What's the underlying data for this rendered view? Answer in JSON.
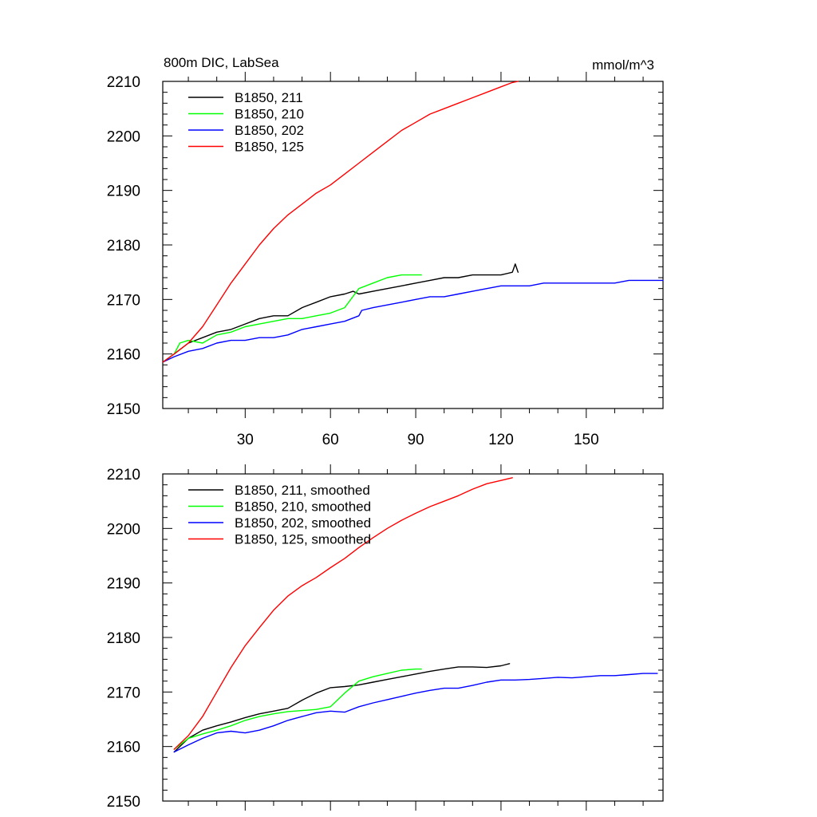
{
  "title_left": "800m DIC, LabSea",
  "title_right": "mmol/m^3",
  "chart_data": [
    {
      "type": "line",
      "panel": "top",
      "title": "800m DIC, LabSea",
      "units": "mmol/m^3",
      "xlim": [
        1,
        177
      ],
      "ylim": [
        2150,
        2210
      ],
      "yticks": [
        2150,
        2160,
        2170,
        2180,
        2190,
        2200,
        2210
      ],
      "xticks": [
        30,
        60,
        90,
        120,
        150
      ],
      "xtick_labels": [
        "30",
        "60",
        "90",
        "120",
        "150"
      ],
      "legend_position": "top-left",
      "series": [
        {
          "name": "B1850, 211",
          "color": "#000000",
          "x": [
            1,
            5,
            10,
            15,
            20,
            25,
            30,
            35,
            40,
            45,
            50,
            55,
            60,
            65,
            68,
            70,
            75,
            80,
            85,
            90,
            95,
            100,
            105,
            110,
            115,
            120,
            124,
            125,
            126
          ],
          "y": [
            2158.5,
            2160,
            2162,
            2163,
            2164,
            2164.5,
            2165.5,
            2166.5,
            2167,
            2167,
            2168.5,
            2169.5,
            2170.5,
            2171,
            2171.5,
            2171,
            2171.5,
            2172,
            2172.5,
            2173,
            2173.5,
            2174,
            2174,
            2174.5,
            2174.5,
            2174.5,
            2175,
            2176.5,
            2175
          ]
        },
        {
          "name": "B1850, 210",
          "color": "#00ff00",
          "x": [
            1,
            5,
            7,
            10,
            15,
            20,
            25,
            30,
            35,
            40,
            45,
            50,
            55,
            60,
            65,
            70,
            75,
            80,
            85,
            90,
            92
          ],
          "y": [
            2158.5,
            2160,
            2162,
            2162.5,
            2162,
            2163.5,
            2164,
            2165,
            2165.5,
            2166,
            2166.5,
            2166.5,
            2167,
            2167.5,
            2168.5,
            2172,
            2173,
            2174,
            2174.5,
            2174.5,
            2174.5
          ]
        },
        {
          "name": "B1850, 202",
          "color": "#0000ff",
          "x": [
            1,
            5,
            10,
            15,
            20,
            25,
            30,
            35,
            40,
            45,
            50,
            55,
            60,
            65,
            70,
            71,
            75,
            80,
            85,
            90,
            95,
            100,
            105,
            110,
            115,
            120,
            125,
            130,
            135,
            140,
            145,
            150,
            155,
            160,
            165,
            170,
            175,
            177
          ],
          "y": [
            2158.5,
            2159.5,
            2160.5,
            2161,
            2162,
            2162.5,
            2162.5,
            2163,
            2163,
            2163.5,
            2164.5,
            2165,
            2165.5,
            2166,
            2167,
            2168,
            2168.5,
            2169,
            2169.5,
            2170,
            2170.5,
            2170.5,
            2171,
            2171.5,
            2172,
            2172.5,
            2172.5,
            2172.5,
            2173,
            2173,
            2173,
            2173,
            2173,
            2173,
            2173.5,
            2173.5,
            2173.5,
            2173.5
          ]
        },
        {
          "name": "B1850, 125",
          "color": "#ff0000",
          "x": [
            1,
            5,
            10,
            15,
            20,
            25,
            30,
            35,
            40,
            45,
            50,
            55,
            60,
            65,
            70,
            75,
            80,
            85,
            90,
            95,
            100,
            105,
            110,
            115,
            120,
            124,
            126
          ],
          "y": [
            2158.5,
            2160,
            2162,
            2165,
            2169,
            2173,
            2176.5,
            2180,
            2183,
            2185.5,
            2187.5,
            2189.5,
            2191,
            2193,
            2195,
            2197,
            2199,
            2201,
            2202.5,
            2204,
            2205,
            2206,
            2207,
            2208,
            2209,
            2209.8,
            2210
          ]
        }
      ]
    },
    {
      "type": "line",
      "panel": "bottom",
      "xlim": [
        1,
        177
      ],
      "ylim": [
        2150,
        2210
      ],
      "yticks": [
        2150,
        2160,
        2170,
        2180,
        2190,
        2200,
        2210
      ],
      "xticks": [
        30,
        60,
        90,
        120,
        150
      ],
      "legend_position": "top-left",
      "series": [
        {
          "name": "B1850, 211, smoothed",
          "color": "#000000",
          "x": [
            5,
            10,
            15,
            20,
            25,
            30,
            35,
            40,
            45,
            50,
            55,
            60,
            65,
            70,
            75,
            80,
            85,
            90,
            95,
            100,
            105,
            110,
            115,
            120,
            123
          ],
          "y": [
            2159,
            2161.5,
            2163,
            2163.8,
            2164.5,
            2165.3,
            2166,
            2166.5,
            2167,
            2168.5,
            2169.8,
            2170.8,
            2171,
            2171.3,
            2171.8,
            2172.3,
            2172.8,
            2173.3,
            2173.8,
            2174.2,
            2174.6,
            2174.6,
            2174.5,
            2174.8,
            2175.2
          ]
        },
        {
          "name": "B1850, 210, smoothed",
          "color": "#00ff00",
          "x": [
            5,
            10,
            15,
            20,
            25,
            30,
            35,
            40,
            45,
            50,
            55,
            60,
            65,
            70,
            75,
            80,
            85,
            90,
            92
          ],
          "y": [
            2159.5,
            2161.5,
            2162.3,
            2163,
            2163.8,
            2164.8,
            2165.5,
            2166,
            2166.4,
            2166.6,
            2166.8,
            2167.3,
            2169.8,
            2172,
            2172.8,
            2173.4,
            2174,
            2174.2,
            2174.2
          ]
        },
        {
          "name": "B1850, 202, smoothed",
          "color": "#0000ff",
          "x": [
            5,
            10,
            15,
            20,
            25,
            30,
            35,
            40,
            45,
            50,
            55,
            60,
            65,
            70,
            75,
            80,
            85,
            90,
            95,
            100,
            105,
            110,
            115,
            120,
            125,
            130,
            135,
            140,
            145,
            150,
            155,
            160,
            165,
            170,
            175
          ],
          "y": [
            2159,
            2160.3,
            2161.5,
            2162.5,
            2162.8,
            2162.5,
            2163,
            2163.8,
            2164.8,
            2165.5,
            2166.2,
            2166.5,
            2166.3,
            2167.3,
            2168,
            2168.6,
            2169.2,
            2169.8,
            2170.3,
            2170.7,
            2170.7,
            2171.2,
            2171.8,
            2172.2,
            2172.2,
            2172.3,
            2172.5,
            2172.7,
            2172.6,
            2172.8,
            2173,
            2173,
            2173.2,
            2173.4,
            2173.4
          ]
        },
        {
          "name": "B1850, 125, smoothed",
          "color": "#ff0000",
          "x": [
            5,
            10,
            15,
            20,
            25,
            30,
            35,
            40,
            45,
            50,
            55,
            60,
            65,
            70,
            75,
            80,
            85,
            90,
            95,
            100,
            105,
            110,
            115,
            120,
            124
          ],
          "y": [
            2159.5,
            2162,
            2165.5,
            2170,
            2174.5,
            2178.5,
            2181.8,
            2185,
            2187.6,
            2189.5,
            2191,
            2192.8,
            2194.5,
            2196.5,
            2198.3,
            2200,
            2201.5,
            2202.8,
            2204,
            2205,
            2206,
            2207.2,
            2208.2,
            2208.8,
            2209.3
          ]
        }
      ]
    }
  ]
}
